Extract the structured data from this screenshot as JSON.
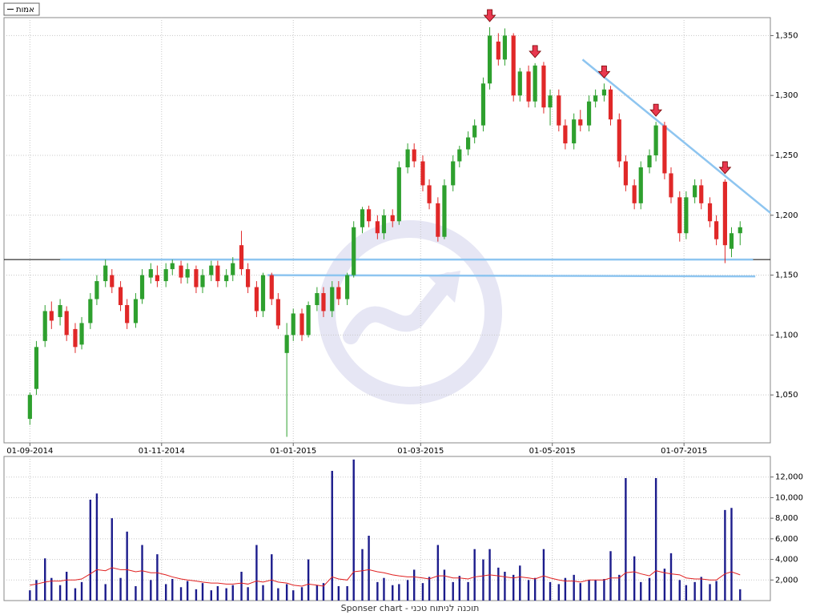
{
  "footer": "Sponser chart - תוכנה לניתוח טכני",
  "chart_data": [
    {
      "type": "candlestick",
      "legend": "top-left",
      "grid": true,
      "series": [
        {
          "name": "אמות",
          "up_color": "#2ea02e",
          "down_color": "#e02828",
          "open": [
            1030,
            1055,
            1095,
            1120,
            1115,
            1120,
            1105,
            1092,
            1110,
            1130,
            1145,
            1150,
            1140,
            1125,
            1110,
            1130,
            1148,
            1150,
            1145,
            1155,
            1158,
            1148,
            1155,
            1140,
            1150,
            1158,
            1145,
            1150,
            1175,
            1155,
            1140,
            1120,
            1150,
            1130,
            1085,
            1100,
            1118,
            1100,
            1125,
            1135,
            1120,
            1140,
            1130,
            1150,
            1190,
            1205,
            1195,
            1185,
            1200,
            1195,
            1240,
            1255,
            1245,
            1225,
            1210,
            1182,
            1225,
            1245,
            1255,
            1265,
            1275,
            1310,
            1345,
            1330,
            1350,
            1300,
            1320,
            1295,
            1325,
            1290,
            1300,
            1275,
            1260,
            1280,
            1275,
            1295,
            1300,
            1305,
            1280,
            1245,
            1225,
            1210,
            1240,
            1250,
            1275,
            1235,
            1215,
            1185,
            1215,
            1225,
            1210,
            1195,
            1228,
            1172,
            1185
          ],
          "high": [
            1052,
            1095,
            1125,
            1128,
            1130,
            1124,
            1110,
            1115,
            1135,
            1150,
            1163,
            1155,
            1145,
            1130,
            1135,
            1155,
            1160,
            1158,
            1160,
            1163,
            1162,
            1160,
            1158,
            1155,
            1162,
            1162,
            1155,
            1165,
            1187,
            1160,
            1145,
            1152,
            1152,
            1135,
            1110,
            1122,
            1122,
            1128,
            1140,
            1140,
            1145,
            1145,
            1152,
            1195,
            1207,
            1208,
            1200,
            1205,
            1205,
            1245,
            1260,
            1260,
            1250,
            1230,
            1215,
            1230,
            1250,
            1258,
            1270,
            1280,
            1315,
            1357,
            1352,
            1356,
            1352,
            1323,
            1325,
            1327,
            1328,
            1305,
            1305,
            1280,
            1285,
            1288,
            1300,
            1305,
            1310,
            1308,
            1285,
            1250,
            1230,
            1245,
            1255,
            1278,
            1278,
            1240,
            1220,
            1220,
            1230,
            1230,
            1215,
            1200,
            1230,
            1190,
            1195
          ],
          "low": [
            1025,
            1050,
            1090,
            1105,
            1108,
            1095,
            1085,
            1088,
            1105,
            1125,
            1140,
            1135,
            1120,
            1105,
            1106,
            1126,
            1143,
            1140,
            1140,
            1150,
            1143,
            1143,
            1135,
            1135,
            1145,
            1140,
            1140,
            1145,
            1150,
            1135,
            1115,
            1115,
            1125,
            1105,
            1015,
            1095,
            1095,
            1098,
            1120,
            1115,
            1115,
            1125,
            1125,
            1148,
            1185,
            1190,
            1180,
            1180,
            1190,
            1192,
            1235,
            1240,
            1220,
            1205,
            1178,
            1180,
            1220,
            1240,
            1250,
            1260,
            1270,
            1305,
            1325,
            1325,
            1295,
            1295,
            1290,
            1290,
            1285,
            1275,
            1270,
            1255,
            1255,
            1270,
            1270,
            1290,
            1295,
            1275,
            1240,
            1220,
            1205,
            1205,
            1235,
            1245,
            1230,
            1210,
            1178,
            1180,
            1210,
            1205,
            1190,
            1175,
            1160,
            1165,
            1175
          ],
          "close": [
            1050,
            1090,
            1120,
            1112,
            1125,
            1100,
            1090,
            1110,
            1130,
            1145,
            1158,
            1140,
            1125,
            1110,
            1130,
            1150,
            1155,
            1145,
            1155,
            1160,
            1148,
            1155,
            1140,
            1150,
            1158,
            1145,
            1150,
            1160,
            1155,
            1140,
            1120,
            1150,
            1130,
            1108,
            1100,
            1118,
            1100,
            1125,
            1135,
            1120,
            1140,
            1130,
            1150,
            1190,
            1205,
            1195,
            1185,
            1200,
            1195,
            1240,
            1255,
            1245,
            1225,
            1210,
            1182,
            1225,
            1245,
            1255,
            1265,
            1275,
            1310,
            1350,
            1330,
            1350,
            1300,
            1320,
            1295,
            1325,
            1290,
            1300,
            1275,
            1260,
            1280,
            1275,
            1295,
            1300,
            1305,
            1280,
            1245,
            1225,
            1210,
            1240,
            1250,
            1275,
            1235,
            1215,
            1185,
            1215,
            1225,
            1210,
            1195,
            1180,
            1175,
            1185,
            1190
          ]
        }
      ],
      "x": [
        "01-09-2014",
        "04-09-2014",
        "08-09-2014",
        "11-09-2014",
        "15-09-2014",
        "18-09-2014",
        "22-09-2014",
        "25-09-2014",
        "29-09-2014",
        "02-10-2014",
        "06-10-2014",
        "09-10-2014",
        "13-10-2014",
        "16-10-2014",
        "20-10-2014",
        "23-10-2014",
        "27-10-2014",
        "30-10-2014",
        "03-11-2014",
        "06-11-2014",
        "10-11-2014",
        "13-11-2014",
        "17-11-2014",
        "20-11-2014",
        "24-11-2014",
        "27-11-2014",
        "01-12-2014",
        "04-12-2014",
        "08-12-2014",
        "11-12-2014",
        "15-12-2014",
        "18-12-2014",
        "22-12-2014",
        "25-12-2014",
        "29-12-2014",
        "01-01-2015",
        "05-01-2015",
        "08-01-2015",
        "12-01-2015",
        "15-01-2015",
        "19-01-2015",
        "22-01-2015",
        "26-01-2015",
        "29-01-2015",
        "02-02-2015",
        "05-02-2015",
        "09-02-2015",
        "12-02-2015",
        "16-02-2015",
        "19-02-2015",
        "23-02-2015",
        "26-02-2015",
        "02-03-2015",
        "05-03-2015",
        "09-03-2015",
        "12-03-2015",
        "16-03-2015",
        "19-03-2015",
        "23-03-2015",
        "26-03-2015",
        "30-03-2015",
        "02-04-2015",
        "06-04-2015",
        "09-04-2015",
        "13-04-2015",
        "16-04-2015",
        "20-04-2015",
        "23-04-2015",
        "27-04-2015",
        "30-04-2015",
        "04-05-2015",
        "07-05-2015",
        "11-05-2015",
        "14-05-2015",
        "18-05-2015",
        "21-05-2015",
        "25-05-2015",
        "28-05-2015",
        "01-06-2015",
        "04-06-2015",
        "08-06-2015",
        "11-06-2015",
        "15-06-2015",
        "18-06-2015",
        "22-06-2015",
        "25-06-2015",
        "29-06-2015",
        "02-07-2015",
        "06-07-2015",
        "09-07-2015",
        "13-07-2015",
        "16-07-2015",
        "20-07-2015",
        "23-07-2015",
        "27-07-2015"
      ],
      "xlim": [
        "20-08-2014",
        "10-08-2015"
      ],
      "xticks": [
        "01-09-2014",
        "01-11-2014",
        "01-01-2015",
        "01-03-2015",
        "01-05-2015",
        "01-07-2015"
      ],
      "ylim": [
        1010,
        1365
      ],
      "yticks": [
        {
          "value": 1050,
          "label": "1,050"
        },
        {
          "value": 1100,
          "label": "1,100"
        },
        {
          "value": 1150,
          "label": "1,150"
        },
        {
          "value": 1200,
          "label": "1,200"
        },
        {
          "value": 1250,
          "label": "1,250"
        },
        {
          "value": 1300,
          "label": "1,300"
        },
        {
          "value": 1350,
          "label": "1,350"
        }
      ],
      "arrows": {
        "color": "#e8384f",
        "x": [
          "02-04-2015",
          "23-04-2015",
          "25-05-2015",
          "18-06-2015",
          "20-07-2015"
        ]
      },
      "hline": {
        "y": 1163,
        "color": "#000000"
      },
      "trendlines": {
        "color": "#8ec5f0",
        "lines": [
          {
            "x": [
              "15-09-2014",
              "02-08-2015"
            ],
            "y": [
              1163,
              1163
            ]
          },
          {
            "x": [
              "20-12-2014",
              "03-08-2015"
            ],
            "y": [
              1150,
              1149
            ]
          },
          {
            "x": [
              "15-05-2015",
              "10-08-2015"
            ],
            "y": [
              1330,
              1202
            ]
          }
        ]
      }
    },
    {
      "type": "bar",
      "grid": true,
      "series": [
        {
          "color": "#1c1c8c",
          "values": [
            1000,
            2000,
            4100,
            2200,
            1500,
            2800,
            1200,
            1800,
            9800,
            10400,
            1600,
            8000,
            2200,
            6700,
            1400,
            5400,
            2000,
            4500,
            1600,
            2100,
            1300,
            1900,
            1100,
            1700,
            1000,
            1400,
            1200,
            1500,
            2800,
            1300,
            5400,
            1500,
            4500,
            1200,
            1600,
            1000,
            1300,
            4000,
            1500,
            1700,
            12600,
            1400,
            1400,
            13700,
            5000,
            6300,
            1800,
            2200,
            1500,
            1600,
            2000,
            3000,
            1700,
            2300,
            5400,
            3000,
            1800,
            2400,
            1800,
            5000,
            4000,
            5000,
            3200,
            2800,
            2500,
            3400,
            2000,
            2200,
            5000,
            1800,
            1600,
            2200,
            2500,
            1700,
            2000,
            2000,
            2100,
            4800,
            2500,
            11900,
            4300,
            1800,
            2200,
            11900,
            3100,
            4600,
            2000,
            1500,
            1800,
            2300,
            1600,
            1900,
            8800,
            9000,
            1100
          ]
        },
        {
          "type": "line",
          "color": "#e02020",
          "values": [
            1500,
            1600,
            1800,
            1900,
            1900,
            2000,
            2000,
            2100,
            2600,
            3000,
            2900,
            3200,
            3000,
            3000,
            2800,
            2900,
            2700,
            2700,
            2500,
            2300,
            2100,
            2000,
            1900,
            1800,
            1700,
            1700,
            1600,
            1600,
            1700,
            1600,
            1900,
            1800,
            2000,
            1800,
            1700,
            1500,
            1400,
            1600,
            1500,
            1400,
            2300,
            2100,
            2000,
            2800,
            2900,
            3000,
            2800,
            2700,
            2500,
            2400,
            2300,
            2300,
            2200,
            2100,
            2400,
            2400,
            2200,
            2200,
            2100,
            2300,
            2400,
            2500,
            2400,
            2300,
            2200,
            2300,
            2200,
            2100,
            2400,
            2200,
            2000,
            1900,
            1900,
            1800,
            2000,
            2000,
            2000,
            2200,
            2200,
            2700,
            2800,
            2600,
            2400,
            2900,
            2700,
            2600,
            2500,
            2200,
            2100,
            2100,
            2000,
            2000,
            2600,
            2800,
            2500
          ]
        }
      ],
      "ylim": [
        0,
        14000
      ],
      "yticks": [
        {
          "value": 2000,
          "label": "2,000"
        },
        {
          "value": 4000,
          "label": "4,000"
        },
        {
          "value": 6000,
          "label": "6,000"
        },
        {
          "value": 8000,
          "label": "8,000"
        },
        {
          "value": 10000,
          "label": "10,000"
        },
        {
          "value": 12000,
          "label": "12,000"
        }
      ]
    }
  ]
}
